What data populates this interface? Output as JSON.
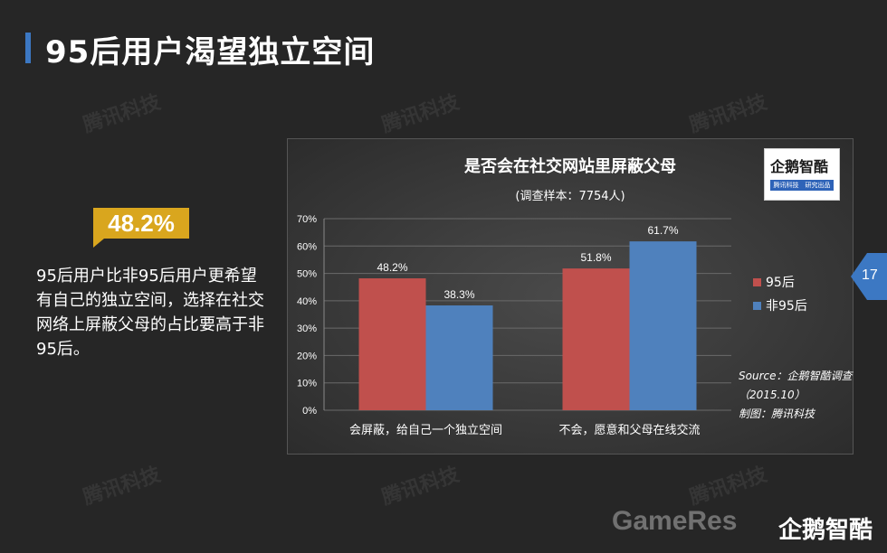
{
  "page": {
    "title": "95后用户渴望独立空间",
    "page_number": "17"
  },
  "stat": {
    "value": "48.2%",
    "description": "95后用户比非95后用户更希望有自己的独立空间，选择在社交网络上屏蔽父母的占比要高于非95后。"
  },
  "watermark": "腾讯科技",
  "brand": {
    "name": "企鹅智酷",
    "strip": "腾讯科技　研究出品"
  },
  "footer": {
    "gameres": "GameRes",
    "brand": "企鹅智酷"
  },
  "colors": {
    "accent": "#3c78c3",
    "badge": "#d9a61e",
    "series_95": "#c0504d",
    "series_non95": "#4f81bd"
  },
  "chart_data": {
    "type": "bar",
    "title": "是否会在社交网站里屏蔽父母",
    "subtitle": "(调查样本：7754人)",
    "categories": [
      "会屏蔽，给自己一个独立空间",
      "不会，愿意和父母在线交流"
    ],
    "series": [
      {
        "name": "95后",
        "values": [
          48.2,
          51.8
        ],
        "labels": [
          "48.2%",
          "51.8%"
        ],
        "color": "#c0504d"
      },
      {
        "name": "非95后",
        "values": [
          38.3,
          61.7
        ],
        "labels": [
          "38.3%",
          "61.7%"
        ],
        "color": "#4f81bd"
      }
    ],
    "ylim": [
      0,
      70
    ],
    "yticks": [
      "0%",
      "10%",
      "20%",
      "30%",
      "40%",
      "50%",
      "60%",
      "70%"
    ],
    "grid": true,
    "legend_position": "right",
    "source_line1": "Source：企鹅智酷调查",
    "source_line2": "（2015.10）",
    "source_line3": "制图：腾讯科技"
  }
}
